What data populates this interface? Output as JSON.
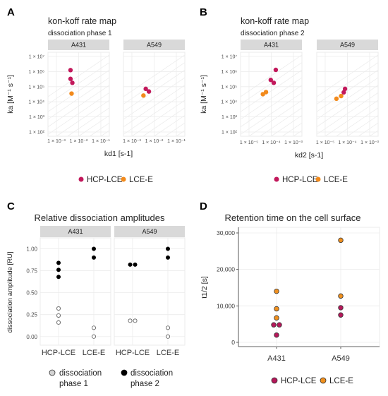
{
  "panels": {
    "A": {
      "letter": "A",
      "title": "kon-koff rate map",
      "subtitle": "dissociation phase 1"
    },
    "B": {
      "letter": "B",
      "title": "kon-koff rate map",
      "subtitle": "dissociation phase 2"
    },
    "C": {
      "letter": "C",
      "title": "Relative dissociation amplitudes"
    },
    "D": {
      "letter": "D",
      "title": "Retention time on the cell surface"
    }
  },
  "legend_ab": {
    "items": [
      {
        "label": "HCP-LCE",
        "color": "#c2185b"
      },
      {
        "label": "LCE-E",
        "color": "#f28a1c"
      }
    ]
  },
  "legend_c": {
    "items": [
      {
        "label": "dissociation phase 1",
        "line1": "dissociation",
        "line2": "phase 1",
        "fill": "#d3d3d3"
      },
      {
        "label": "dissociation phase 2",
        "line1": "dissociation",
        "line2": "phase 2",
        "fill": "#000000"
      }
    ]
  },
  "legend_d": {
    "items": [
      {
        "label": "HCP-LCE",
        "color": "#b5185a"
      },
      {
        "label": "LCE-E",
        "color": "#f0901e"
      }
    ]
  },
  "chart_data": [
    {
      "type": "scatter",
      "panel": "A",
      "title": "kon-koff rate map",
      "subtitle": "dissociation phase 1",
      "xlabel": "kd1 [s-1]",
      "ylabel": "ka [M⁻¹ s⁻¹]",
      "xscale": "log",
      "yscale": "log",
      "xlim": [
        0.001,
        0.1
      ],
      "ylim": [
        100,
        10000000
      ],
      "xticks": [
        "1 × 10⁻³",
        "1 × 10⁻²",
        "1 × 10⁻¹"
      ],
      "yticks": [
        "1 × 10²",
        "1 × 10³",
        "1 × 10⁴",
        "1 × 10⁵",
        "1 × 10⁶",
        "1 × 10⁷"
      ],
      "facets": [
        "A431",
        "A549"
      ],
      "series": [
        {
          "name": "HCP-LCE",
          "color": "#c2185b",
          "points": [
            {
              "facet": "A431",
              "x": 0.0043,
              "y": 1250000
            },
            {
              "facet": "A431",
              "x": 0.0043,
              "y": 330000
            },
            {
              "facet": "A431",
              "x": 0.0052,
              "y": 180000
            },
            {
              "facet": "A549",
              "x": 0.0042,
              "y": 72000
            },
            {
              "facet": "A549",
              "x": 0.0058,
              "y": 48000
            }
          ]
        },
        {
          "name": "LCE-E",
          "color": "#f28a1c",
          "points": [
            {
              "facet": "A431",
              "x": 0.0048,
              "y": 35000
            },
            {
              "facet": "A549",
              "x": 0.0033,
              "y": 26000
            }
          ]
        }
      ]
    },
    {
      "type": "scatter",
      "panel": "B",
      "title": "kon-koff rate map",
      "subtitle": "dissociation phase 2",
      "xlabel": "kd2 [s-1]",
      "ylabel": "ka [M⁻¹ s⁻¹]",
      "xscale": "log",
      "yscale": "log",
      "xlim": [
        1e-05,
        0.001
      ],
      "ylim": [
        100,
        10000000
      ],
      "xticks": [
        "1 × 10⁻⁵",
        "1 × 10⁻⁴",
        "1 × 10⁻³"
      ],
      "yticks": [
        "1 × 10²",
        "1 × 10³",
        "1 × 10⁴",
        "1 × 10⁵",
        "1 × 10⁶",
        "1 × 10⁷"
      ],
      "facets": [
        "A431",
        "A549"
      ],
      "series": [
        {
          "name": "HCP-LCE",
          "color": "#c2185b",
          "points": [
            {
              "facet": "A431",
              "x": 0.00016,
              "y": 1300000
            },
            {
              "facet": "A431",
              "x": 9.5e-05,
              "y": 280000
            },
            {
              "facet": "A431",
              "x": 0.00013,
              "y": 180000
            },
            {
              "facet": "A549",
              "x": 7.8e-05,
              "y": 72000
            },
            {
              "facet": "A549",
              "x": 6.8e-05,
              "y": 42000
            }
          ]
        },
        {
          "name": "LCE-E",
          "color": "#f28a1c",
          "points": [
            {
              "facet": "A431",
              "x": 5.8e-05,
              "y": 44000
            },
            {
              "facet": "A431",
              "x": 4.2e-05,
              "y": 32000
            },
            {
              "facet": "A549",
              "x": 5.2e-05,
              "y": 24000
            },
            {
              "facet": "A549",
              "x": 3.2e-05,
              "y": 16000
            }
          ]
        }
      ]
    },
    {
      "type": "scatter",
      "panel": "C",
      "title": "Relative dissociation amplitudes",
      "ylabel": "dissociation amplitude [RU]",
      "ylim": [
        -0.05,
        1.06
      ],
      "yticks": [
        "0.00",
        "0.25",
        "0.50",
        "0.75",
        "1.00"
      ],
      "categories": [
        "HCP-LCE",
        "LCE-E"
      ],
      "facets": [
        "A431",
        "A549"
      ],
      "series": [
        {
          "name": "dissociation phase 1",
          "fill": "#ffffff",
          "points": [
            {
              "facet": "A431",
              "category": "HCP-LCE",
              "y": 0.32
            },
            {
              "facet": "A431",
              "category": "HCP-LCE",
              "y": 0.24
            },
            {
              "facet": "A431",
              "category": "HCP-LCE",
              "y": 0.16
            },
            {
              "facet": "A431",
              "category": "LCE-E",
              "y": 0.1
            },
            {
              "facet": "A431",
              "category": "LCE-E",
              "y": 0.0
            },
            {
              "facet": "A549",
              "category": "HCP-LCE",
              "y": 0.18
            },
            {
              "facet": "A549",
              "category": "HCP-LCE",
              "y": 0.18
            },
            {
              "facet": "A549",
              "category": "LCE-E",
              "y": 0.1
            },
            {
              "facet": "A549",
              "category": "LCE-E",
              "y": 0.0
            }
          ]
        },
        {
          "name": "dissociation phase 2",
          "fill": "#000000",
          "points": [
            {
              "facet": "A431",
              "category": "HCP-LCE",
              "y": 0.84
            },
            {
              "facet": "A431",
              "category": "HCP-LCE",
              "y": 0.76
            },
            {
              "facet": "A431",
              "category": "HCP-LCE",
              "y": 0.68
            },
            {
              "facet": "A431",
              "category": "LCE-E",
              "y": 1.0
            },
            {
              "facet": "A431",
              "category": "LCE-E",
              "y": 0.9
            },
            {
              "facet": "A549",
              "category": "HCP-LCE",
              "y": 0.82
            },
            {
              "facet": "A549",
              "category": "HCP-LCE",
              "y": 0.82
            },
            {
              "facet": "A549",
              "category": "LCE-E",
              "y": 1.0
            },
            {
              "facet": "A549",
              "category": "LCE-E",
              "y": 0.9
            }
          ]
        }
      ]
    },
    {
      "type": "scatter",
      "panel": "D",
      "title": "Retention time on the cell surface",
      "ylabel": "t1/2 [s]",
      "ylim": [
        0,
        30000
      ],
      "yticks": [
        "0",
        "10,000",
        "20,000",
        "30,000"
      ],
      "categories": [
        "A431",
        "A549"
      ],
      "series": [
        {
          "name": "HCP-LCE",
          "color": "#b5185a",
          "points": [
            {
              "category": "A431",
              "y": 4800
            },
            {
              "category": "A431",
              "y": 4800
            },
            {
              "category": "A431",
              "y": 2000
            },
            {
              "category": "A549",
              "y": 9500
            },
            {
              "category": "A549",
              "y": 7500
            }
          ]
        },
        {
          "name": "LCE-E",
          "color": "#f0901e",
          "points": [
            {
              "category": "A431",
              "y": 14000
            },
            {
              "category": "A431",
              "y": 9200
            },
            {
              "category": "A431",
              "y": 6700
            },
            {
              "category": "A549",
              "y": 28000
            },
            {
              "category": "A549",
              "y": 12700
            }
          ]
        }
      ]
    }
  ]
}
